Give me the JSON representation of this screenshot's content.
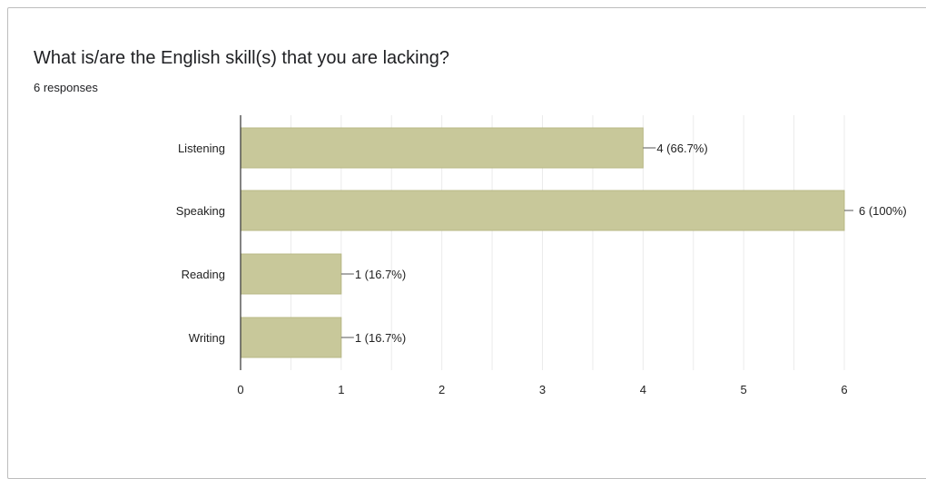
{
  "card": {
    "title": "What is/are the English skill(s) that you are lacking?",
    "subtitle": "6 responses"
  },
  "colors": {
    "bar": "#c8c89a",
    "bar_stroke": "#b8b886",
    "grid": "#ebebeb",
    "axis": "#333333",
    "leader": "#555555"
  },
  "chart_data": {
    "type": "bar",
    "orientation": "horizontal",
    "categories": [
      "Listening",
      "Speaking",
      "Reading",
      "Writing"
    ],
    "values": [
      4,
      6,
      1,
      1
    ],
    "data_labels": [
      "4 (66.7%)",
      "6 (100%)",
      "1 (16.7%)",
      "1 (16.7%)"
    ],
    "xlim": [
      0,
      6
    ],
    "x_ticks": [
      0,
      1,
      2,
      3,
      4,
      5,
      6
    ],
    "grid": true,
    "legend": "none"
  }
}
